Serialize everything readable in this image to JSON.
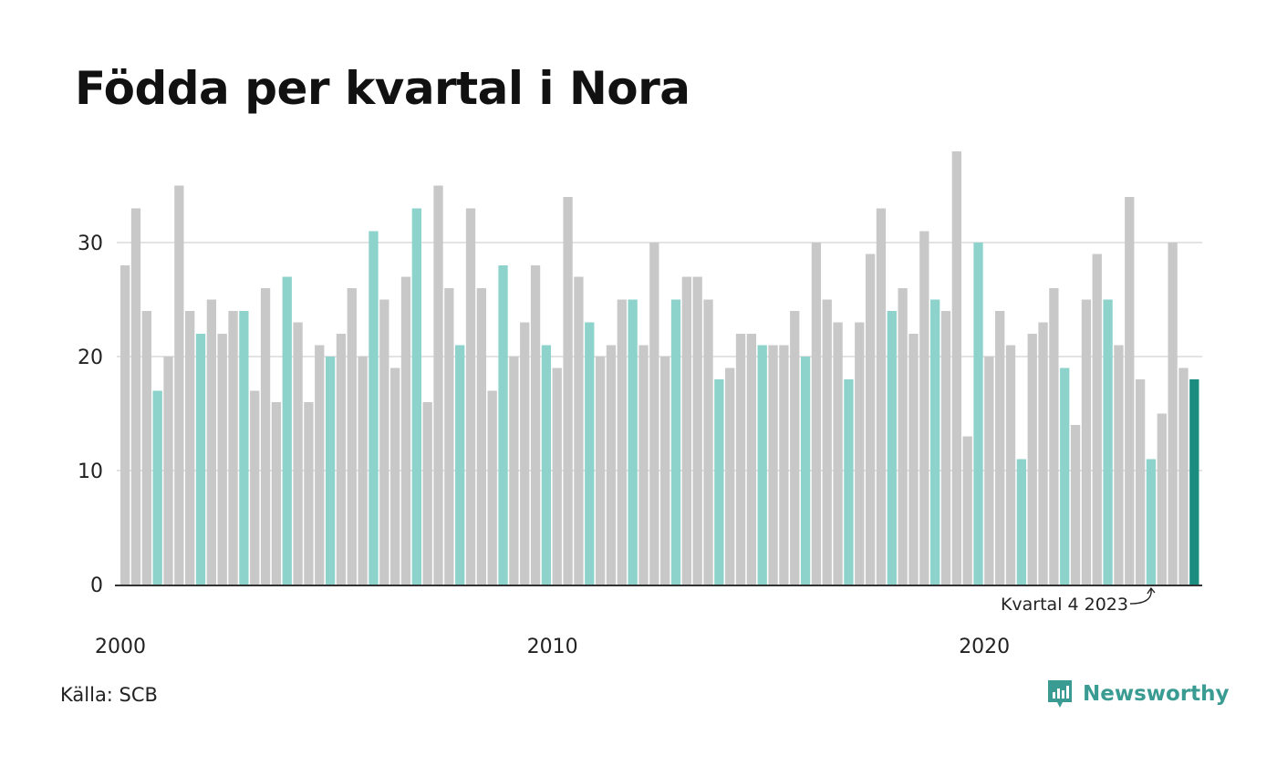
{
  "title": "Födda per kvartal i Nora",
  "source": "Källa: SCB",
  "brand": "Newsworthy",
  "annotation": "Kvartal 4 2023",
  "colors": {
    "bar": "#c8c8c8",
    "q4": "#8dd3cc",
    "highlight": "#1a8c80",
    "grid": "#e3e3e3",
    "axis": "#333333",
    "brand": "#3a9b92"
  },
  "chart_data": {
    "type": "bar",
    "title": "Födda per kvartal i Nora",
    "xlabel": "",
    "ylabel": "",
    "ylim": [
      0,
      38
    ],
    "yticks": [
      0,
      10,
      20,
      30
    ],
    "xticks": [
      "2000",
      "2010",
      "2020"
    ],
    "grid": true,
    "legend": "none",
    "first_period": "2000 kvartal 1",
    "last_period": "2024 kvartal 4",
    "highlight_note": "Kvartal 4 2023",
    "values": [
      28,
      33,
      24,
      17,
      20,
      35,
      24,
      22,
      25,
      22,
      24,
      24,
      17,
      26,
      16,
      27,
      23,
      16,
      21,
      20,
      22,
      26,
      20,
      31,
      25,
      19,
      27,
      33,
      16,
      35,
      26,
      21,
      33,
      26,
      17,
      28,
      20,
      23,
      28,
      21,
      19,
      34,
      27,
      23,
      20,
      21,
      25,
      25,
      21,
      30,
      20,
      25,
      27,
      27,
      25,
      18,
      19,
      22,
      22,
      21,
      21,
      21,
      24,
      20,
      30,
      25,
      23,
      18,
      23,
      29,
      33,
      24,
      26,
      22,
      31,
      25,
      24,
      38,
      13,
      30,
      20,
      24,
      21,
      11,
      22,
      23,
      26,
      19,
      14,
      25,
      29,
      25,
      21,
      34,
      18,
      11,
      15,
      30,
      19,
      18
    ]
  }
}
